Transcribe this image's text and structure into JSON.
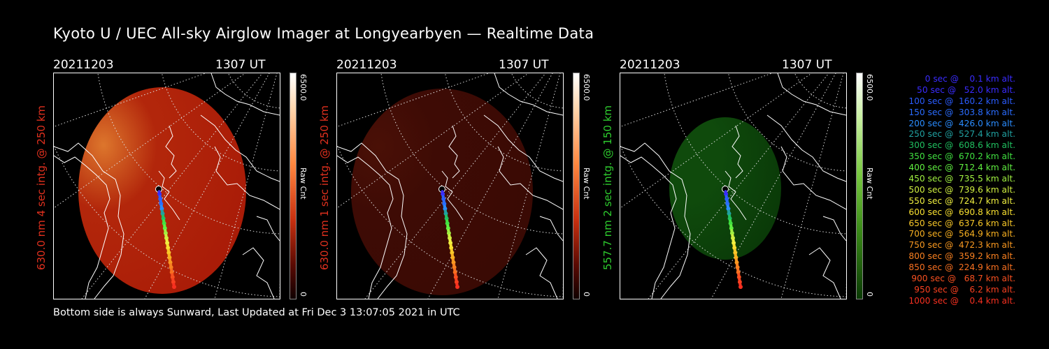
{
  "title": "Kyoto U / UEC All-sky Airglow Imager at Longyearbyen — Realtime Data",
  "footer": "Bottom side is always Sunward, Last Updated at Fri Dec  3 13:07:05 2021 in UTC",
  "panels": [
    {
      "date": "20211203",
      "time": "1307 UT",
      "ylabel": "630.0 nm 4 sec intg. @ 250 km",
      "ylabel_color": "#e0301e",
      "cbar_max": "6500.0",
      "cbar_unit": "Raw Cnt",
      "cbar_min": "0",
      "theme": "red-bright"
    },
    {
      "date": "20211203",
      "time": "1307 UT",
      "ylabel": "630.0 nm 1 sec intg. @ 250 km",
      "ylabel_color": "#e0301e",
      "cbar_max": "6500.0",
      "cbar_unit": "Raw Cnt",
      "cbar_min": "0",
      "theme": "red-dim"
    },
    {
      "date": "20211203",
      "time": "1307 UT",
      "ylabel": "557.7 nm 2 sec intg. @ 150 km",
      "ylabel_color": "#2ecc2e",
      "cbar_max": "6500.0",
      "cbar_unit": "Raw Cnt",
      "cbar_min": "0",
      "theme": "green"
    }
  ],
  "legend": [
    {
      "text": "   0 sec @    0.1 km alt.",
      "color": "#3a2cff"
    },
    {
      "text": "  50 sec @   52.0 km alt.",
      "color": "#3a2cff"
    },
    {
      "text": " 100 sec @  160.2 km alt.",
      "color": "#2a5cff"
    },
    {
      "text": " 150 sec @  303.8 km alt.",
      "color": "#2a6cff"
    },
    {
      "text": " 200 sec @  426.0 km alt.",
      "color": "#2a8cff"
    },
    {
      "text": " 250 sec @  527.4 km alt.",
      "color": "#20a0a0"
    },
    {
      "text": " 300 sec @  608.6 km alt.",
      "color": "#20c060"
    },
    {
      "text": " 350 sec @  670.2 km alt.",
      "color": "#40e040"
    },
    {
      "text": " 400 sec @  712.4 km alt.",
      "color": "#60f040"
    },
    {
      "text": " 450 sec @  735.5 km alt.",
      "color": "#a0f040"
    },
    {
      "text": " 500 sec @  739.6 km alt.",
      "color": "#d0f040"
    },
    {
      "text": " 550 sec @  724.7 km alt.",
      "color": "#f0f040"
    },
    {
      "text": " 600 sec @  690.8 km alt.",
      "color": "#f8e030"
    },
    {
      "text": " 650 sec @  637.6 km alt.",
      "color": "#f8c828"
    },
    {
      "text": " 700 sec @  564.9 km alt.",
      "color": "#f8b020"
    },
    {
      "text": " 750 sec @  472.3 km alt.",
      "color": "#f89820"
    },
    {
      "text": " 800 sec @  359.2 km alt.",
      "color": "#f88020"
    },
    {
      "text": " 850 sec @  224.9 km alt.",
      "color": "#f87020"
    },
    {
      "text": " 900 sec @   68.7 km alt.",
      "color": "#f85020"
    },
    {
      "text": " 950 sec @    6.2 km alt.",
      "color": "#f84020"
    },
    {
      "text": "1000 sec @    0.4 km alt.",
      "color": "#f83020"
    }
  ]
}
